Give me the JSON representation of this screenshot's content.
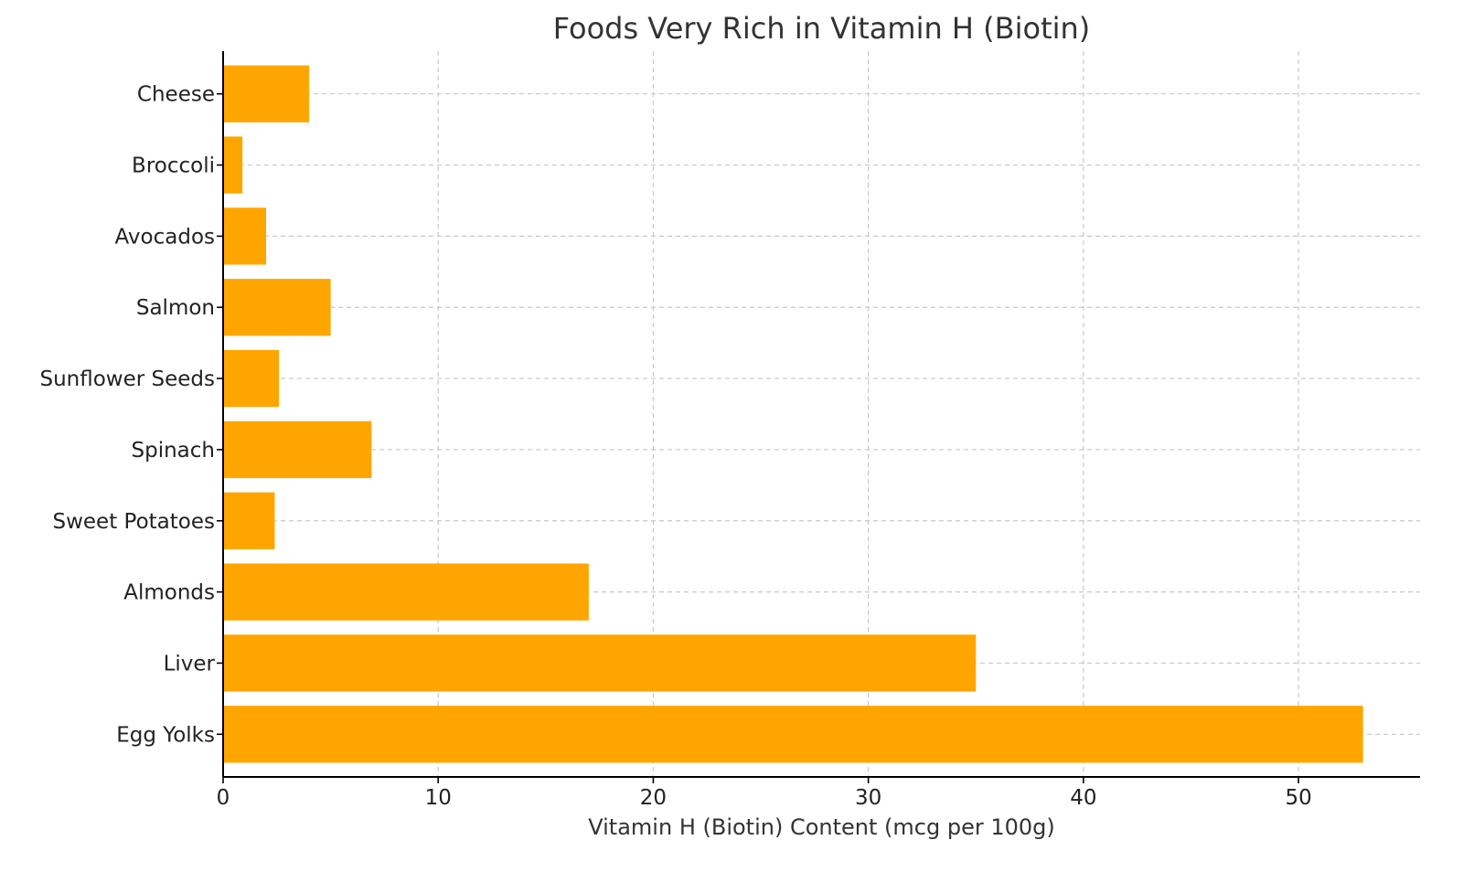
{
  "chart_data": {
    "type": "bar",
    "orientation": "horizontal",
    "title": "Foods Very Rich in Vitamin H (Biotin)",
    "xlabel": "Vitamin H (Biotin) Content (mcg per 100g)",
    "ylabel": "",
    "categories": [
      "Egg Yolks",
      "Liver",
      "Almonds",
      "Sweet Potatoes",
      "Spinach",
      "Sunflower Seeds",
      "Salmon",
      "Avocados",
      "Broccoli",
      "Cheese"
    ],
    "values": [
      53,
      35,
      17,
      2.4,
      6.9,
      2.6,
      5,
      2,
      0.9,
      4
    ],
    "xlim": [
      0,
      55.65
    ],
    "xticks": [
      0,
      10,
      20,
      30,
      40,
      50
    ],
    "grid": true,
    "bar_color": "#FFA500"
  }
}
